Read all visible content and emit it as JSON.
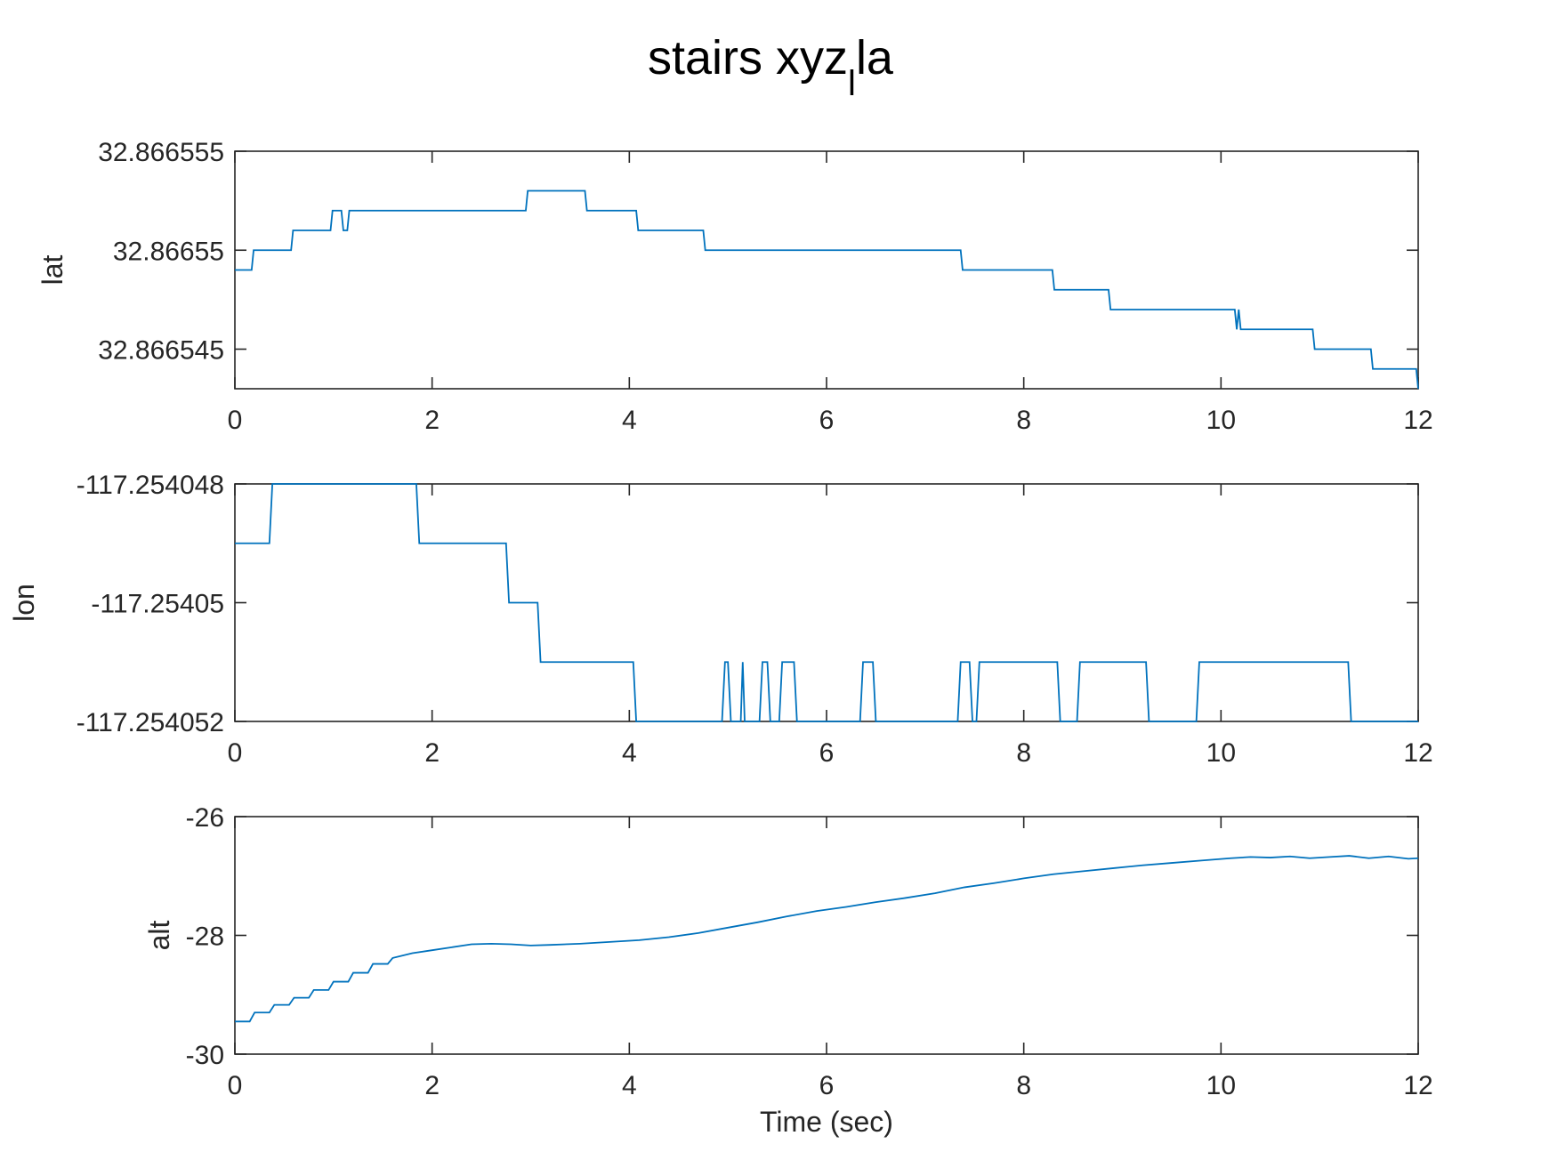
{
  "figure": {
    "title_main": "stairs xyz",
    "title_sub": "l",
    "title_tail": "la"
  },
  "chart_data": [
    {
      "type": "line",
      "ylabel": "lat",
      "xlabel": "",
      "xlim": [
        0,
        12
      ],
      "ylim": [
        32.866543,
        32.866555
      ],
      "xticks": [
        "0",
        "2",
        "4",
        "6",
        "8",
        "10",
        "12"
      ],
      "yticks": [
        {
          "value": 32.866555,
          "label": "32.866555"
        },
        {
          "value": 32.86655,
          "label": "32.86655"
        },
        {
          "value": 32.866545,
          "label": "32.866545"
        }
      ],
      "color": "#0072BD",
      "series": [
        {
          "x": [
            0,
            0.17,
            0.19,
            0.57,
            0.59,
            0.97,
            0.99,
            1.08,
            1.1,
            1.14,
            1.16,
            2.95,
            2.97,
            3.55,
            3.57,
            4.07,
            4.09,
            4.75,
            4.77,
            7.36,
            7.38,
            8.29,
            8.31,
            8.86,
            8.88,
            10.14,
            10.16,
            10.18,
            10.2,
            10.93,
            10.95,
            11.52,
            11.54,
            11.98,
            12.0
          ],
          "y": [
            32.866549,
            32.866549,
            32.86655,
            32.86655,
            32.866551,
            32.866551,
            32.866552,
            32.866552,
            32.866551,
            32.866551,
            32.866552,
            32.866552,
            32.866553,
            32.866553,
            32.866552,
            32.866552,
            32.866551,
            32.866551,
            32.86655,
            32.86655,
            32.866549,
            32.866549,
            32.866548,
            32.866548,
            32.866547,
            32.866547,
            32.866546,
            32.866547,
            32.866546,
            32.866546,
            32.866545,
            32.866545,
            32.866544,
            32.866544,
            32.866543
          ]
        }
      ]
    },
    {
      "type": "line",
      "ylabel": "lon",
      "xlabel": "",
      "xlim": [
        0,
        12
      ],
      "ylim": [
        -117.254052,
        -117.254048
      ],
      "xticks": [
        "0",
        "2",
        "4",
        "6",
        "8",
        "10",
        "12"
      ],
      "yticks": [
        {
          "value": -117.254048,
          "label": "-117.254048"
        },
        {
          "value": -117.25405,
          "label": "-117.25405"
        },
        {
          "value": -117.254052,
          "label": "-117.254052"
        }
      ],
      "color": "#0072BD",
      "series": [
        {
          "x": [
            0,
            0.35,
            0.38,
            1.84,
            1.87,
            2.75,
            2.78,
            3.07,
            3.1,
            4.04,
            4.07,
            4.94,
            4.97,
            5.0,
            5.03,
            5.13,
            5.15,
            5.17,
            5.32,
            5.35,
            5.4,
            5.43,
            5.52,
            5.55,
            5.67,
            5.7,
            6.34,
            6.37,
            6.47,
            6.5,
            7.33,
            7.36,
            7.45,
            7.48,
            7.52,
            7.55,
            8.34,
            8.37,
            8.54,
            8.57,
            9.24,
            9.27,
            9.75,
            9.78,
            11.29,
            11.32,
            12.0
          ],
          "y": [
            -117.254049,
            -117.254049,
            -117.254048,
            -117.254048,
            -117.254049,
            -117.254049,
            -117.25405,
            -117.25405,
            -117.254051,
            -117.254051,
            -117.254052,
            -117.254052,
            -117.254051,
            -117.254051,
            -117.254052,
            -117.254052,
            -117.254051,
            -117.254052,
            -117.254052,
            -117.254051,
            -117.254051,
            -117.254052,
            -117.254052,
            -117.254051,
            -117.254051,
            -117.254052,
            -117.254052,
            -117.254051,
            -117.254051,
            -117.254052,
            -117.254052,
            -117.254051,
            -117.254051,
            -117.254052,
            -117.254052,
            -117.254051,
            -117.254051,
            -117.254052,
            -117.254052,
            -117.254051,
            -117.254051,
            -117.254052,
            -117.254052,
            -117.254051,
            -117.254051,
            -117.254052,
            -117.254052
          ]
        }
      ]
    },
    {
      "type": "line",
      "ylabel": "alt",
      "xlabel": "Time (sec)",
      "xlim": [
        0,
        12
      ],
      "ylim": [
        -30,
        -26
      ],
      "xticks": [
        "0",
        "2",
        "4",
        "6",
        "8",
        "10",
        "12"
      ],
      "yticks": [
        {
          "value": -26,
          "label": "-26"
        },
        {
          "value": -28,
          "label": "-28"
        },
        {
          "value": -30,
          "label": "-30"
        }
      ],
      "color": "#0072BD",
      "series": [
        {
          "x": [
            0,
            0.15,
            0.2,
            0.35,
            0.4,
            0.55,
            0.6,
            0.75,
            0.8,
            0.95,
            1.0,
            1.15,
            1.2,
            1.35,
            1.4,
            1.55,
            1.6,
            1.8,
            2.0,
            2.2,
            2.4,
            2.6,
            2.8,
            3.0,
            3.2,
            3.5,
            3.8,
            4.1,
            4.4,
            4.7,
            5.0,
            5.3,
            5.6,
            5.9,
            6.2,
            6.5,
            6.8,
            7.1,
            7.4,
            7.7,
            8.0,
            8.3,
            8.6,
            8.9,
            9.2,
            9.5,
            9.8,
            10.1,
            10.3,
            10.5,
            10.7,
            10.9,
            11.1,
            11.3,
            11.5,
            11.7,
            11.9,
            12.0
          ],
          "y": [
            -29.45,
            -29.45,
            -29.3,
            -29.3,
            -29.17,
            -29.17,
            -29.05,
            -29.05,
            -28.92,
            -28.92,
            -28.78,
            -28.78,
            -28.63,
            -28.63,
            -28.48,
            -28.48,
            -28.38,
            -28.3,
            -28.25,
            -28.2,
            -28.15,
            -28.14,
            -28.15,
            -28.17,
            -28.16,
            -28.14,
            -28.11,
            -28.08,
            -28.03,
            -27.96,
            -27.87,
            -27.78,
            -27.68,
            -27.59,
            -27.52,
            -27.44,
            -27.37,
            -27.29,
            -27.19,
            -27.12,
            -27.04,
            -26.97,
            -26.92,
            -26.87,
            -26.82,
            -26.78,
            -26.74,
            -26.7,
            -26.68,
            -26.69,
            -26.67,
            -26.7,
            -26.68,
            -26.66,
            -26.7,
            -26.67,
            -26.71,
            -26.7
          ]
        }
      ]
    }
  ]
}
